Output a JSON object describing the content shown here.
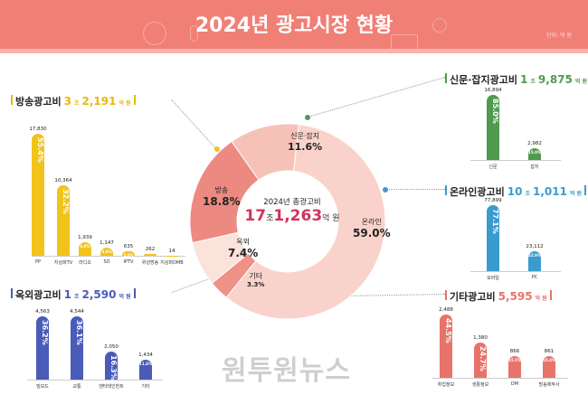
{
  "header": {
    "title": "2024년 광고시장 현황",
    "unit": "단위: 억 원"
  },
  "watermark": "원투원뉴스",
  "chart_data": [
    {
      "type": "pie",
      "title": "2024년 총광고비",
      "total": "17조1,263억 원",
      "total_parts": {
        "jo": "17",
        "jo_unit": "조",
        "eok": "1,263",
        "eok_unit": "억 원"
      },
      "categories": [
        "신문·잡지",
        "온라인",
        "기타",
        "옥외",
        "방송"
      ],
      "values": [
        11.6,
        59.0,
        3.3,
        7.4,
        18.8
      ],
      "labels": [
        "11.6%",
        "59.0%",
        "3.3%",
        "7.4%",
        "18.8%"
      ],
      "colors": [
        "#f6c2b8",
        "#f9d3cb",
        "#ee9187",
        "#fbe2db",
        "#ec8a82"
      ]
    },
    {
      "type": "bar",
      "key": "broadcast",
      "title": "방송광고비",
      "total_jo": "3",
      "total_eok": "2,191",
      "unit_jo": "조",
      "unit_eok": "억 원",
      "color": "#f2c31a",
      "titlecolor": "#e8b80c",
      "categories": [
        "PP",
        "지상파TV",
        "라디오",
        "SO",
        "IPTV",
        "위성방송",
        "지상파DMB"
      ],
      "values": [
        17830,
        10364,
        1939,
        1147,
        635,
        262,
        14
      ],
      "value_labels": [
        "17,830",
        "10,364",
        "1,939",
        "1,147",
        "635",
        "262",
        "14"
      ],
      "pct": [
        "55.4%",
        "32.2%",
        "6.0%",
        "3.6%",
        "2.0%",
        "",
        ""
      ]
    },
    {
      "type": "bar",
      "key": "outdoor",
      "title": "옥외광고비",
      "total_jo": "1",
      "total_eok": "2,590",
      "unit_jo": "조",
      "unit_eok": "억 원",
      "color": "#4a5bb8",
      "titlecolor": "#4a5bb8",
      "categories": [
        "빌보드",
        "교통",
        "엔터테인먼트",
        "기타"
      ],
      "values": [
        4563,
        4544,
        2050,
        1434
      ],
      "value_labels": [
        "4,563",
        "4,544",
        "2,050",
        "1,434"
      ],
      "pct": [
        "36.2%",
        "36.1%",
        "16.3%",
        "11.4%"
      ]
    },
    {
      "type": "bar",
      "key": "print",
      "title": "신문·잡지광고비",
      "total_jo": "1",
      "total_eok": "9,875",
      "unit_jo": "조",
      "unit_eok": "억 원",
      "color": "#4f9a4f",
      "titlecolor": "#4f9a4f",
      "categories": [
        "신문",
        "잡지"
      ],
      "values": [
        16894,
        2982
      ],
      "value_labels": [
        "16,894",
        "2,982"
      ],
      "pct": [
        "85.0%",
        "15.0%"
      ]
    },
    {
      "type": "bar",
      "key": "online",
      "title": "온라인광고비",
      "total_jo": "10",
      "total_eok": "1,011",
      "unit_jo": "조",
      "unit_eok": "억 원",
      "color": "#3a9ccc",
      "titlecolor": "#3a9ccc",
      "categories": [
        "모바일",
        "PC"
      ],
      "values": [
        77899,
        23112
      ],
      "value_labels": [
        "77,899",
        "23,112"
      ],
      "pct": [
        "77.1%",
        "22.9%"
      ]
    },
    {
      "type": "bar",
      "key": "other",
      "title": "기타광고비",
      "total_jo": "",
      "total_eok": "5,595",
      "unit_jo": "",
      "unit_eok": "억 원",
      "color": "#e8736a",
      "titlecolor": "#e8736a",
      "categories": [
        "취업정보",
        "생활정보",
        "DM",
        "방송제작사"
      ],
      "values": [
        2488,
        1380,
        866,
        861
      ],
      "value_labels": [
        "2,488",
        "1,380",
        "866",
        "861"
      ],
      "pct": [
        "44.5%",
        "24.7%",
        "15.5%",
        "15.4%"
      ]
    }
  ]
}
